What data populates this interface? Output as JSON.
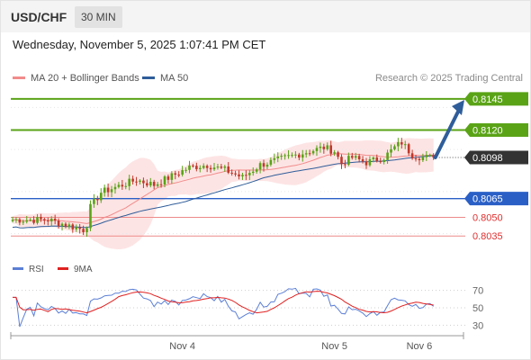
{
  "header": {
    "symbol": "USD/CHF",
    "timeframe": "30 MIN"
  },
  "date_line": "Wednesday, November 5, 2025 1:07:41 PM CET",
  "legend": [
    {
      "label": "MA 20 + Bollinger Bands",
      "color": "#f28b8b"
    },
    {
      "label": "MA 50",
      "color": "#2f5d9a"
    }
  ],
  "credit": "Research © 2025 Trading Central",
  "rsi_legend": [
    {
      "label": "RSI",
      "color": "#5b7fd6"
    },
    {
      "label": "9MA",
      "color": "#e02020"
    }
  ],
  "colors": {
    "resistance": "#5aa317",
    "support_strong": "#2a5fc6",
    "support": "#ee8a8a",
    "arrow": "#2f5d9a",
    "up_candle": "#5aa317",
    "down_candle": "#c0392b"
  },
  "chart_data": {
    "type": "candlestick",
    "ylim": [
      8020,
      8155
    ],
    "price_scale": 0.0001,
    "n_bars": 120,
    "x_ticks": [
      {
        "label": "Nov 4",
        "bar": 48
      },
      {
        "label": "Nov 5",
        "bar": 91
      },
      {
        "label": "Nov 6",
        "bar": 115
      }
    ],
    "levels": [
      {
        "label": "0.8145",
        "value": 8145,
        "type": "resistance"
      },
      {
        "label": "0.8120",
        "value": 8120,
        "type": "resistance"
      },
      {
        "label": "0.8098",
        "value": 8098,
        "type": "current"
      },
      {
        "label": "0.8065",
        "value": 8065,
        "type": "support_strong"
      },
      {
        "label": "0.8050",
        "value": 8050,
        "type": "support"
      },
      {
        "label": "0.8035",
        "value": 8035,
        "type": "support"
      }
    ],
    "anchors": [
      [
        0,
        8048
      ],
      [
        10,
        8048
      ],
      [
        20,
        8040
      ],
      [
        21,
        8044
      ],
      [
        22,
        8058
      ],
      [
        25,
        8070
      ],
      [
        30,
        8075
      ],
      [
        35,
        8080
      ],
      [
        40,
        8076
      ],
      [
        50,
        8090
      ],
      [
        55,
        8092
      ],
      [
        60,
        8088
      ],
      [
        65,
        8082
      ],
      [
        70,
        8092
      ],
      [
        80,
        8100
      ],
      [
        88,
        8106
      ],
      [
        91,
        8103
      ],
      [
        93,
        8093
      ],
      [
        96,
        8098
      ],
      [
        100,
        8094
      ],
      [
        105,
        8098
      ],
      [
        108,
        8106
      ],
      [
        110,
        8110
      ],
      [
        113,
        8100
      ],
      [
        116,
        8098
      ],
      [
        117,
        8098
      ]
    ],
    "projection": {
      "from_value": 8098,
      "to_value": 8142
    },
    "rsi": {
      "ylim": [
        20,
        80
      ],
      "ticks": [
        {
          "label": "70",
          "value": 70
        },
        {
          "label": "50",
          "value": 50
        },
        {
          "label": "30",
          "value": 30
        }
      ]
    }
  }
}
